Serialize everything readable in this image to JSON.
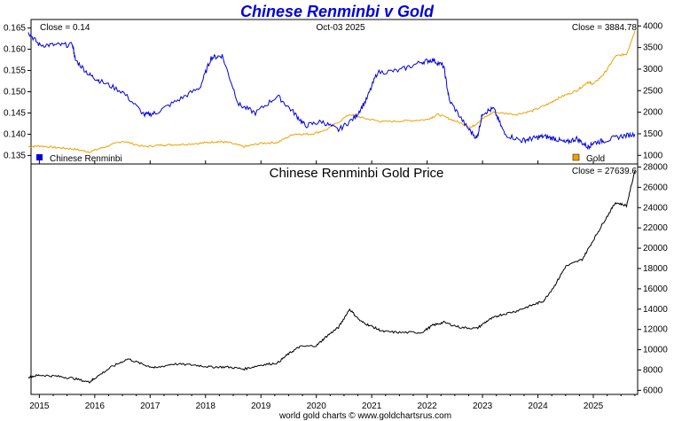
{
  "chart_data": [
    {
      "type": "line",
      "title": "Chinese Renminbi v Gold",
      "date_label": "Oct-03  2025",
      "left_close_label": "Close = 0.14",
      "right_close_label": "Close = 3884.78",
      "left_axis": {
        "ylim": [
          0.133,
          0.167
        ],
        "ticks": [
          "0.165",
          "0.160",
          "0.155",
          "0.150",
          "0.145",
          "0.140",
          "0.135"
        ],
        "tick_values": [
          0.165,
          0.16,
          0.155,
          0.15,
          0.145,
          0.14,
          0.135
        ]
      },
      "right_axis": {
        "ylim": [
          800,
          4150
        ],
        "ticks": [
          "4000",
          "3500",
          "3000",
          "2500",
          "2000",
          "1500",
          "1000"
        ],
        "tick_values": [
          4000,
          3500,
          3000,
          2500,
          2000,
          1500,
          1000
        ]
      },
      "series": [
        {
          "name": "Chinese Renminbi",
          "axis": "left",
          "color": "#0000dd",
          "x": [
            2014.8,
            2015.0,
            2015.3,
            2015.6,
            2015.65,
            2015.9,
            2016.1,
            2016.5,
            2016.9,
            2017.1,
            2017.5,
            2017.9,
            2018.1,
            2018.3,
            2018.6,
            2018.9,
            2019.3,
            2019.6,
            2019.8,
            2020.1,
            2020.4,
            2020.7,
            2020.9,
            2021.1,
            2021.5,
            2021.9,
            2022.1,
            2022.3,
            2022.4,
            2022.7,
            2022.9,
            2023.0,
            2023.2,
            2023.4,
            2023.7,
            2023.9,
            2024.1,
            2024.3,
            2024.5,
            2024.7,
            2024.9,
            2025.0,
            2025.2,
            2025.5,
            2025.75
          ],
          "values": [
            0.164,
            0.161,
            0.161,
            0.161,
            0.1575,
            0.154,
            0.1525,
            0.15,
            0.1445,
            0.145,
            0.148,
            0.151,
            0.158,
            0.1585,
            0.147,
            0.145,
            0.149,
            0.145,
            0.142,
            0.143,
            0.141,
            0.144,
            0.148,
            0.1545,
            0.155,
            0.157,
            0.1575,
            0.156,
            0.148,
            0.142,
            0.139,
            0.145,
            0.146,
            0.14,
            0.1385,
            0.139,
            0.1395,
            0.139,
            0.138,
            0.139,
            0.137,
            0.138,
            0.1385,
            0.1395,
            0.14
          ]
        },
        {
          "name": "Gold",
          "axis": "right",
          "color": "#f0a000",
          "x": [
            2014.8,
            2015.0,
            2015.3,
            2015.6,
            2015.9,
            2016.2,
            2016.5,
            2016.9,
            2017.2,
            2017.5,
            2017.9,
            2018.2,
            2018.4,
            2018.7,
            2019.0,
            2019.3,
            2019.6,
            2019.9,
            2020.2,
            2020.6,
            2020.9,
            2021.2,
            2021.6,
            2022.0,
            2022.2,
            2022.5,
            2022.8,
            2023.0,
            2023.2,
            2023.6,
            2023.9,
            2024.2,
            2024.4,
            2024.7,
            2024.9,
            2025.0,
            2025.2,
            2025.4,
            2025.6,
            2025.75
          ],
          "values": [
            1200,
            1220,
            1180,
            1150,
            1080,
            1200,
            1330,
            1200,
            1240,
            1250,
            1280,
            1320,
            1300,
            1200,
            1280,
            1300,
            1500,
            1490,
            1600,
            1950,
            1850,
            1780,
            1800,
            1830,
            1950,
            1800,
            1650,
            1850,
            2000,
            1950,
            2030,
            2200,
            2350,
            2500,
            2700,
            2650,
            2900,
            3300,
            3350,
            3884.78
          ]
        }
      ],
      "legend": [
        {
          "label": "Chinese Renminbi",
          "color": "#0000dd"
        },
        {
          "label": "Gold",
          "color": "#f0a000"
        }
      ]
    },
    {
      "type": "line",
      "title": "Chinese Renminbi Gold Price",
      "close_label": "Close = 27639.6",
      "ylim": [
        5600,
        28300
      ],
      "ticks": [
        "28000",
        "26000",
        "24000",
        "22000",
        "20000",
        "18000",
        "16000",
        "14000",
        "12000",
        "10000",
        "8000",
        "6000"
      ],
      "tick_values": [
        28000,
        26000,
        24000,
        22000,
        20000,
        18000,
        16000,
        14000,
        12000,
        10000,
        8000,
        6000
      ],
      "series": [
        {
          "name": "Chinese Renminbi Gold Price",
          "color": "#000000",
          "x": [
            2014.8,
            2015.0,
            2015.3,
            2015.6,
            2015.9,
            2016.0,
            2016.3,
            2016.6,
            2016.9,
            2017.1,
            2017.4,
            2017.8,
            2018.1,
            2018.4,
            2018.7,
            2019.0,
            2019.3,
            2019.5,
            2019.7,
            2020.0,
            2020.2,
            2020.4,
            2020.6,
            2020.8,
            2021.0,
            2021.2,
            2021.5,
            2021.9,
            2022.1,
            2022.3,
            2022.6,
            2022.9,
            2023.1,
            2023.3,
            2023.6,
            2023.9,
            2024.1,
            2024.3,
            2024.5,
            2024.8,
            2025.0,
            2025.2,
            2025.4,
            2025.6,
            2025.75
          ],
          "values": [
            7300,
            7500,
            7400,
            7200,
            6800,
            7200,
            8300,
            9100,
            8500,
            8200,
            8600,
            8500,
            8300,
            8300,
            8100,
            8500,
            8700,
            9600,
            10300,
            10400,
            11400,
            12200,
            14000,
            12800,
            12300,
            11800,
            11700,
            11700,
            12400,
            12700,
            12200,
            12100,
            12900,
            13400,
            13800,
            14400,
            14800,
            16300,
            18200,
            18900,
            20800,
            22700,
            24500,
            24200,
            27639.6
          ]
        }
      ]
    }
  ],
  "x_axis": {
    "range": [
      2014.85,
      2025.8
    ],
    "ticks": [
      "2015",
      "2016",
      "2017",
      "2018",
      "2019",
      "2020",
      "2021",
      "2022",
      "2023",
      "2024",
      "2025"
    ],
    "tick_values": [
      2015,
      2016,
      2017,
      2018,
      2019,
      2020,
      2021,
      2022,
      2023,
      2024,
      2025
    ]
  },
  "footer": "world gold charts © www.goldchartsrus.com"
}
